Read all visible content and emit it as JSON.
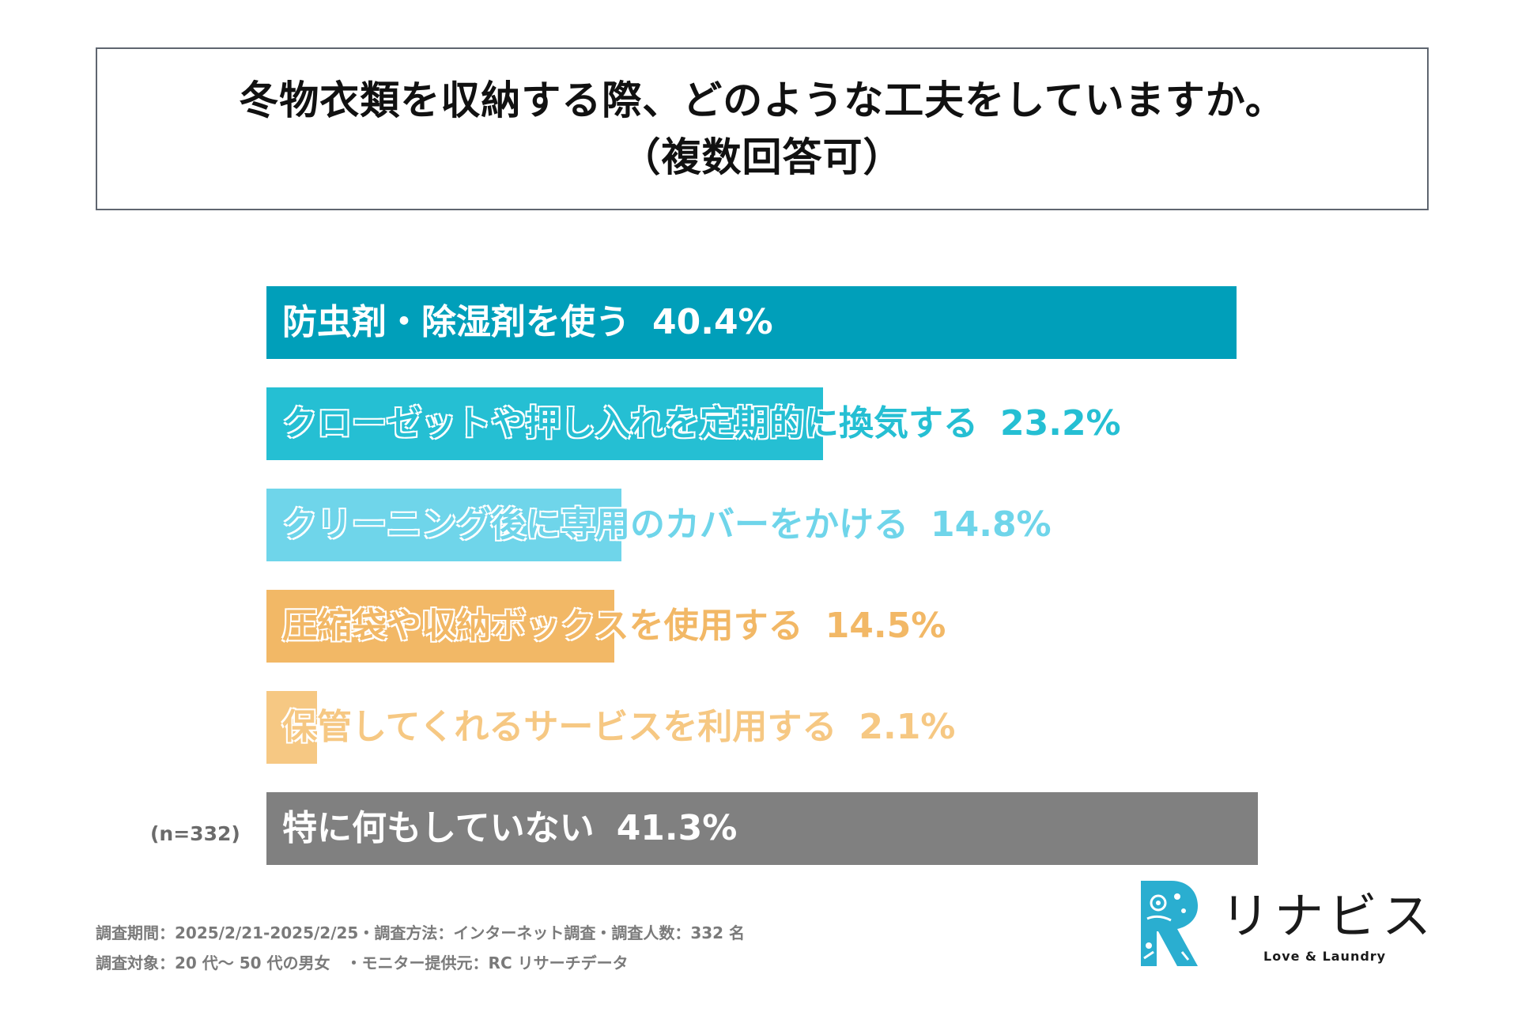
{
  "header": {
    "title_line1": "冬物衣類を収納する際、どのような工夫をしていますか。",
    "title_line2": "（複数回答可）"
  },
  "sample_label": "(n=332)",
  "chart_data": {
    "type": "bar",
    "orientation": "horizontal",
    "title": "冬物衣類を収納する際、どのような工夫をしていますか。（複数回答可）",
    "xlabel": "",
    "ylabel": "",
    "xlim": [
      0,
      41.3
    ],
    "grid": false,
    "categories": [
      "防虫剤・除湿剤を使う",
      "クローゼットや押し入れを定期的に換気する",
      "クリーニング後に専用のカバーをかける",
      "圧縮袋や収納ボックスを使用する",
      "保管してくれるサービスを利用する",
      "特に何もしていない"
    ],
    "values": [
      40.4,
      23.2,
      14.8,
      14.5,
      2.1,
      41.3
    ],
    "value_labels": [
      "40.4%",
      "23.2%",
      "14.8%",
      "14.5%",
      "2.1%",
      "41.3%"
    ],
    "colors": [
      "#009fba",
      "#25bfd3",
      "#6fd5ea",
      "#f2b866",
      "#f6c883",
      "#808080"
    ],
    "label_colors": [
      "#ffffff",
      "#25bfd3",
      "#6fd5ea",
      "#f2b866",
      "#f6c883",
      "#ffffff"
    ]
  },
  "footer": {
    "line1": "調査期間：2025/2/21-2025/2/25・調査方法：インターネット調査・調査人数：332 名",
    "line2": "調査対象：20 代〜 50 代の男女　・モニター提供元：RC リサーチデータ"
  },
  "logo": {
    "name": "リナビス",
    "tagline": "Love & Laundry",
    "mark_letter": "R",
    "mark_color": "#2aaed0",
    "icon": "rinavis-r-logo-icon"
  }
}
